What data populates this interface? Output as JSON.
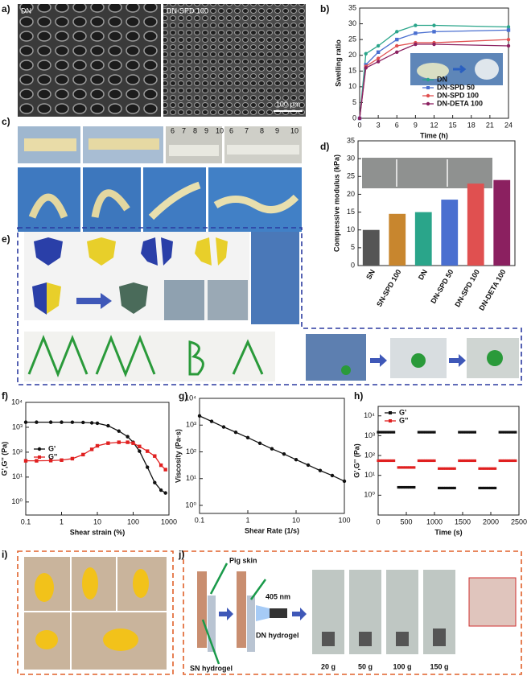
{
  "figure": {
    "panels": [
      "a)",
      "b)",
      "c)",
      "d)",
      "e)",
      "f)",
      "g)",
      "h)",
      "i)",
      "j)"
    ],
    "sem_labels": [
      "DN",
      "DN-SPD 100"
    ],
    "scale_bar": "100 μm",
    "ruler_digits": [
      "6",
      "7",
      "8",
      "9",
      "10",
      "6",
      "7",
      "8",
      "9",
      "10"
    ],
    "j_labels": {
      "pig_skin": "Pig skin",
      "light": "405 nm",
      "dn": "DN hydrogel",
      "sn": "SN hydrogel"
    },
    "weights": [
      "20 g",
      "50 g",
      "100 g",
      "150 g"
    ]
  },
  "chart_data": [
    {
      "type": "line",
      "xlabel": "Time (h)",
      "ylabel": "Swelling ratio",
      "x": [
        0,
        1,
        3,
        6,
        9,
        12,
        24
      ],
      "xlim": [
        0,
        24
      ],
      "xticks": [
        0,
        3,
        6,
        9,
        12,
        15,
        18,
        21,
        24
      ],
      "ylim": [
        0,
        35
      ],
      "yticks": [
        0,
        5,
        10,
        15,
        20,
        25,
        30,
        35
      ],
      "legend": "lower right",
      "series": [
        {
          "name": "DN",
          "color": "#2aa58a",
          "marker": "circle",
          "values": [
            0,
            20.5,
            23,
            27.5,
            29.5,
            29.5,
            29
          ]
        },
        {
          "name": "DN-SPD 50",
          "color": "#4a6fd0",
          "marker": "square",
          "values": [
            0,
            17,
            21,
            25,
            27,
            27.5,
            28
          ]
        },
        {
          "name": "DN-SPD 100",
          "color": "#e05050",
          "marker": "circle",
          "values": [
            0,
            16.5,
            19,
            23,
            24,
            24,
            25
          ]
        },
        {
          "name": "DN-DETA 100",
          "color": "#8b2060",
          "marker": "circle",
          "values": [
            0,
            16,
            18,
            21,
            23.5,
            23.5,
            23
          ]
        }
      ]
    },
    {
      "type": "bar",
      "ylabel": "Compressive modulus (kPa)",
      "categories": [
        "SN",
        "SN-SPD 100",
        "DN",
        "DN-SPD 50",
        "DN-SPD 100",
        "DN-DETA 100"
      ],
      "values": [
        10,
        14.5,
        15,
        18.5,
        23,
        24
      ],
      "colors": [
        "#555555",
        "#c8862e",
        "#2aa58a",
        "#4a6fd0",
        "#e05050",
        "#8b2060"
      ],
      "ylim": [
        0,
        35
      ],
      "yticks": [
        0,
        5,
        10,
        15,
        20,
        25,
        30,
        35
      ]
    },
    {
      "type": "line",
      "xlabel": "Shear strain (%)",
      "ylabel": "G',G'' (Pa)",
      "xscale": "log",
      "yscale": "log",
      "x": [
        0.1,
        0.2,
        0.5,
        1,
        2,
        4,
        7,
        10,
        20,
        40,
        70,
        100,
        150,
        250,
        400,
        600,
        800
      ],
      "xlim": [
        0.1,
        1000
      ],
      "xticks": [
        0.1,
        1,
        10,
        100,
        1000
      ],
      "ylim": [
        0.3,
        10000
      ],
      "yticks": [
        {
          "value": 1,
          "label": "10⁰"
        },
        {
          "value": 10,
          "label": "10¹"
        },
        {
          "value": 100,
          "label": "10²"
        },
        {
          "value": 1000,
          "label": "10³"
        },
        {
          "value": 10000,
          "label": "10⁴"
        }
      ],
      "legend": "center left",
      "series": [
        {
          "name": "G'",
          "color": "#111111",
          "marker": "circle",
          "values": [
            1600,
            1600,
            1600,
            1600,
            1590,
            1560,
            1500,
            1450,
            1150,
            700,
            420,
            250,
            110,
            25,
            6,
            3,
            2.3
          ]
        },
        {
          "name": "G''",
          "color": "#e02020",
          "marker": "square",
          "values": [
            45,
            45,
            46,
            48,
            55,
            80,
            130,
            180,
            230,
            250,
            250,
            230,
            170,
            110,
            70,
            30,
            20
          ]
        }
      ]
    },
    {
      "type": "line",
      "xlabel": "Shear Rate (1/s)",
      "ylabel": "Viscosity (Pa·s)",
      "xscale": "log",
      "yscale": "log",
      "x": [
        0.1,
        0.178,
        0.316,
        0.562,
        1,
        1.78,
        3.16,
        5.62,
        10,
        17.8,
        31.6,
        56.2,
        100
      ],
      "xlim": [
        0.1,
        100
      ],
      "xticks": [
        0.1,
        1,
        10,
        100
      ],
      "ylim": [
        0.5,
        10000
      ],
      "yticks": [
        {
          "value": 1,
          "label": "10⁰"
        },
        {
          "value": 10,
          "label": "10¹"
        },
        {
          "value": 100,
          "label": "10²"
        },
        {
          "value": 1000,
          "label": "10³"
        },
        {
          "value": 10000,
          "label": "10⁴"
        }
      ],
      "series": [
        {
          "color": "#111111",
          "marker": "circle",
          "values": [
            2200,
            1380,
            850,
            540,
            340,
            210,
            130,
            83,
            51,
            32,
            20,
            13,
            8
          ]
        }
      ]
    },
    {
      "type": "scatter",
      "xlabel": "Time (s)",
      "ylabel": "G',G'' (Pa)",
      "yscale": "log",
      "x": [
        0,
        40,
        80,
        120,
        160,
        200,
        240,
        280,
        360,
        400,
        440,
        480,
        520,
        560,
        600,
        640,
        720,
        760,
        800,
        840,
        880,
        920,
        960,
        1000,
        1080,
        1120,
        1160,
        1200,
        1240,
        1280,
        1320,
        1360,
        1440,
        1480,
        1520,
        1560,
        1600,
        1640,
        1680,
        1720,
        1800,
        1840,
        1880,
        1920,
        1960,
        2000,
        2040,
        2080,
        2160,
        2200,
        2240,
        2280,
        2320,
        2360,
        2400,
        2440
      ],
      "xlim": [
        0,
        2500
      ],
      "xticks": [
        0,
        500,
        1000,
        1500,
        2000,
        2500
      ],
      "ylim": [
        0.1,
        30000
      ],
      "yticks": [
        {
          "value": 1,
          "label": "10⁰"
        },
        {
          "value": 10,
          "label": "10¹"
        },
        {
          "value": 100,
          "label": "10²"
        },
        {
          "value": 1000,
          "label": "10³"
        },
        {
          "value": 10000,
          "label": "10⁴"
        }
      ],
      "legend": "upper left",
      "series": [
        {
          "name": "G'",
          "color": "#111111",
          "marker": "square",
          "values": [
            1500,
            1500,
            1500,
            1500,
            1500,
            1500,
            1500,
            1500,
            2.5,
            2.5,
            2.5,
            2.5,
            2.5,
            2.5,
            2.5,
            2.5,
            1500,
            1500,
            1500,
            1500,
            1500,
            1500,
            1500,
            1500,
            2.3,
            2.3,
            2.3,
            2.3,
            2.3,
            2.3,
            2.3,
            2.3,
            1500,
            1500,
            1500,
            1500,
            1500,
            1500,
            1500,
            1500,
            2.3,
            2.3,
            2.3,
            2.3,
            2.3,
            2.3,
            2.3,
            2.3,
            1500,
            1500,
            1500,
            1500,
            1500,
            1500,
            1500,
            1500
          ]
        },
        {
          "name": "G''",
          "color": "#e02020",
          "marker": "square",
          "values": [
            55,
            55,
            55,
            55,
            55,
            55,
            55,
            55,
            25,
            25,
            25,
            25,
            25,
            25,
            25,
            25,
            55,
            55,
            55,
            55,
            55,
            55,
            55,
            55,
            22,
            22,
            22,
            22,
            22,
            22,
            22,
            22,
            55,
            55,
            55,
            55,
            55,
            55,
            55,
            55,
            22,
            22,
            22,
            22,
            22,
            22,
            22,
            22,
            55,
            55,
            55,
            55,
            55,
            55,
            55,
            55
          ]
        }
      ]
    }
  ]
}
